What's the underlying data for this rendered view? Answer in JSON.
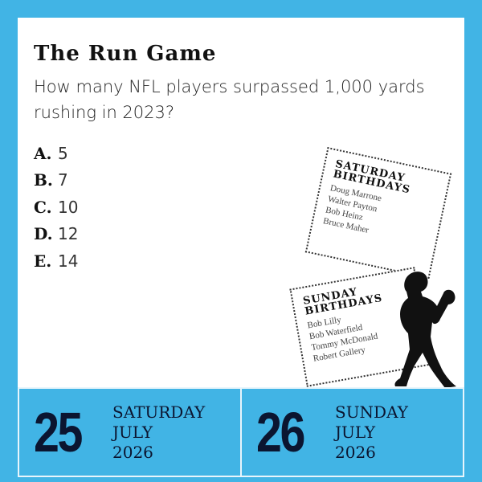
{
  "title": "The Run Game",
  "question": "How many NFL players surpassed 1,000 yards rushing in 2023?",
  "answers": [
    {
      "letter": "A.",
      "value": "5"
    },
    {
      "letter": "B.",
      "value": "7"
    },
    {
      "letter": "C.",
      "value": "10"
    },
    {
      "letter": "D.",
      "value": "12"
    },
    {
      "letter": "E.",
      "value": "14"
    }
  ],
  "saturday_birthdays": {
    "heading1": "SATURDAY",
    "heading2": "BIRTHDAYS",
    "names": [
      "Doug Marrone",
      "Walter Payton",
      "Bob Heinz",
      "Bruce Maher"
    ]
  },
  "sunday_birthdays": {
    "heading1": "SUNDAY",
    "heading2": "BIRTHDAYS",
    "names": [
      "Bob Lilly",
      "Bob Waterfield",
      "Tommy McDonald",
      "Robert Gallery"
    ]
  },
  "dates": [
    {
      "day": "25",
      "weekday": "SATURDAY",
      "month": "JULY",
      "year": "2026"
    },
    {
      "day": "26",
      "weekday": "SUNDAY",
      "month": "JULY",
      "year": "2026"
    }
  ],
  "colors": {
    "frame": "#41b4e5",
    "date_text": "#0b1530"
  },
  "icons": {
    "player": "football-quarterback-silhouette"
  }
}
